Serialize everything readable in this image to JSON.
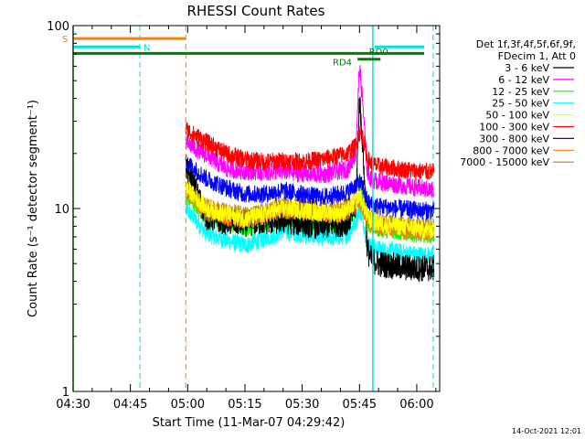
{
  "chart_data": {
    "type": "line",
    "title": "RHESSI Count Rates",
    "xlabel": "Start Time (11-Mar-07 04:29:42)",
    "ylabel": "Count Rate (s⁻¹ detector segment⁻¹)",
    "yscale": "log",
    "ylim": [
      1,
      100
    ],
    "xlim_minutes": [
      0,
      96
    ],
    "x_tick_labels": [
      "04:30",
      "04:45",
      "05:00",
      "05:15",
      "05:30",
      "05:45",
      "06:00"
    ],
    "x_tick_minutes": [
      0,
      15,
      30,
      45,
      60,
      75,
      90
    ],
    "y_tick_labels": [
      "1",
      "10",
      "100"
    ],
    "y_tick_values": [
      1,
      10,
      100
    ],
    "date_stamp": "14-Oct-2021 12:01",
    "legend_header": [
      "Det 1f,3f,4f,5f,6f,9f,",
      "FDecim 1, Att 0"
    ],
    "data_start_minute": 29.5,
    "data_end_minute": 94.5,
    "series": [
      {
        "name": "3 - 6 keV",
        "color": "#000000",
        "minutes": [
          29.5,
          35,
          40,
          45,
          50,
          55,
          60,
          65,
          70,
          72,
          74,
          75,
          76,
          77,
          78,
          80,
          85,
          90,
          94.5
        ],
        "values": [
          17,
          9,
          8.5,
          8.3,
          8.5,
          8.6,
          8.3,
          8.0,
          8.3,
          8.5,
          10,
          40,
          20,
          6,
          5.3,
          5.0,
          4.8,
          4.7,
          4.7
        ]
      },
      {
        "name": "6 - 12 keV",
        "color": "#ff00ff",
        "minutes": [
          29.5,
          35,
          40,
          45,
          50,
          55,
          60,
          65,
          70,
          72,
          74,
          75,
          76,
          77,
          78,
          80,
          85,
          90,
          94.5
        ],
        "values": [
          23,
          19.5,
          16.5,
          16.0,
          15.8,
          16.0,
          15.5,
          15.3,
          16.0,
          16.5,
          20,
          60,
          35,
          16,
          14.5,
          14.0,
          13.5,
          13.0,
          12.5
        ]
      },
      {
        "name": "12 - 25 keV",
        "color": "#00ff00",
        "minutes": [
          29.5,
          35,
          40,
          45,
          50,
          55,
          60,
          65,
          70,
          72,
          74,
          75,
          76,
          77,
          78,
          80,
          85,
          90,
          94.5
        ],
        "values": [
          12,
          9,
          8.5,
          7.8,
          8.2,
          8.8,
          8.5,
          8.3,
          8.4,
          8.6,
          10,
          14,
          11,
          8.5,
          8.0,
          7.8,
          7.5,
          7.3,
          7.2
        ]
      },
      {
        "name": "25 - 50 keV",
        "color": "#00ffff",
        "minutes": [
          29.5,
          35,
          40,
          45,
          50,
          55,
          60,
          65,
          70,
          72,
          74,
          75,
          76,
          77,
          78,
          80,
          85,
          90,
          94.5
        ],
        "values": [
          10,
          7.3,
          6.7,
          6.3,
          6.8,
          7.5,
          7.2,
          7.0,
          7.0,
          7.2,
          8.5,
          10,
          8.5,
          6.5,
          6.2,
          6.0,
          5.8,
          5.6,
          5.5
        ]
      },
      {
        "name": "50 - 100 keV",
        "color": "#ffff00",
        "minutes": [
          29.5,
          35,
          40,
          45,
          50,
          55,
          60,
          65,
          70,
          72,
          74,
          75,
          76,
          77,
          78,
          80,
          85,
          90,
          94.5
        ],
        "values": [
          13,
          10,
          9.3,
          8.8,
          9.3,
          10,
          9.8,
          9.5,
          9.5,
          9.8,
          11,
          12,
          10.5,
          9.0,
          8.6,
          8.3,
          8.0,
          7.8,
          7.6
        ]
      },
      {
        "name": "100 - 300 keV",
        "color": "#ff0000",
        "minutes": [
          29.5,
          35,
          40,
          45,
          50,
          55,
          60,
          65,
          70,
          72,
          74,
          75,
          76,
          77,
          78,
          80,
          85,
          90,
          94.5
        ],
        "values": [
          27,
          23,
          20,
          18.5,
          18.0,
          18.2,
          18.0,
          18.5,
          19.5,
          20,
          22,
          26,
          24,
          19,
          17.5,
          17.0,
          16.5,
          16.0,
          15.8
        ]
      },
      {
        "name": "300 - 800 keV",
        "color": "#0000ff",
        "minutes": [
          29.5,
          35,
          40,
          45,
          50,
          55,
          60,
          65,
          70,
          72,
          74,
          75,
          76,
          77,
          78,
          80,
          85,
          90,
          94.5
        ],
        "values": [
          18,
          14.5,
          13.0,
          12.0,
          12.0,
          12.5,
          12.0,
          11.5,
          12.0,
          12.3,
          13.5,
          14,
          13,
          11.0,
          10.5,
          10.3,
          10.0,
          9.8,
          9.7
        ]
      },
      {
        "name": "800 - 7000 keV",
        "color": "#ff8000",
        "minutes": [
          29.5,
          35,
          40,
          45,
          50,
          55,
          60,
          65,
          70,
          72,
          74,
          75,
          76,
          77,
          78,
          80,
          85,
          90,
          94.5
        ],
        "values": [
          12.5,
          9.5,
          9.0,
          8.6,
          9.0,
          9.8,
          9.6,
          9.3,
          9.4,
          9.6,
          10.5,
          11,
          10,
          8.6,
          8.2,
          8.0,
          7.7,
          7.5,
          7.4
        ]
      },
      {
        "name": "7000 - 15000 keV",
        "color": "#b8860b",
        "minutes": [
          29.5,
          35,
          40,
          45,
          50,
          55,
          60,
          65,
          70,
          72,
          74,
          75,
          76,
          77,
          78,
          80,
          85,
          90,
          94.5
        ],
        "values": [
          13,
          10.2,
          9.6,
          9.2,
          9.6,
          10.4,
          10.2,
          9.9,
          10.0,
          10.2,
          11,
          11.5,
          10.5,
          9.2,
          8.8,
          8.5,
          8.2,
          8.0,
          7.9
        ]
      }
    ],
    "vertical_markers": [
      {
        "minute": 0,
        "color": "#00c000",
        "style": "solid"
      },
      {
        "minute": 17.5,
        "color": "#00e0e0",
        "style": "dashed"
      },
      {
        "minute": 29.5,
        "color": "#ff8000",
        "style": "dashed"
      },
      {
        "minute": 78.5,
        "color": "#00e0e0",
        "style": "solid"
      },
      {
        "minute": 94.3,
        "color": "#00e0e0",
        "style": "dashed"
      }
    ],
    "state_bars": [
      {
        "label": "S",
        "color": "#ff8000",
        "start_minute": 0,
        "end_minute": 29.5,
        "level": 85
      },
      {
        "label": "N",
        "color": "#00e0e0",
        "start_minute": 0,
        "end_minute": 17.5,
        "level": 76.5
      },
      {
        "label": "N",
        "color": "#00e0e0",
        "start_minute": 79,
        "end_minute": 95.5,
        "level": 76.5
      },
      {
        "label": "",
        "color": "#008000",
        "start_minute": 0,
        "end_minute": 95.5,
        "level": 70.5
      }
    ],
    "annotations": [
      {
        "label": "RD0",
        "color": "#008000",
        "minute": 77.5,
        "level": 69,
        "bar": [
          74.5,
          80.5
        ],
        "bar_level": 65.5
      },
      {
        "label": "RD4",
        "color": "#008000",
        "minute": 68,
        "level": 60.5
      }
    ]
  }
}
